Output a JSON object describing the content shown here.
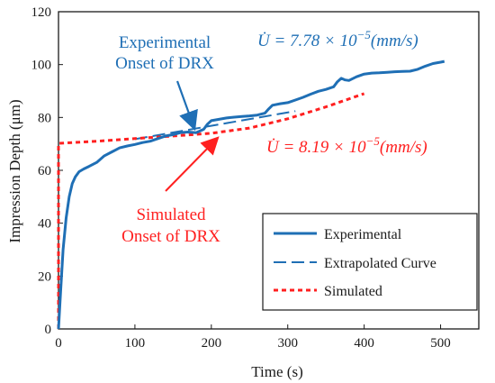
{
  "chart_data": {
    "type": "line",
    "xlabel": "Time (s)",
    "ylabel": "Impression Depth (μm)",
    "xlim": [
      0,
      550
    ],
    "ylim": [
      0,
      120
    ],
    "xticks": [
      0,
      100,
      200,
      300,
      400,
      500
    ],
    "yticks": [
      0,
      20,
      40,
      60,
      80,
      100,
      120
    ],
    "grid": false,
    "legend_position": "bottom-right",
    "series": [
      {
        "name": "Experimental",
        "color": "#1f6fb5",
        "style": "solid",
        "x": [
          0,
          3,
          6,
          10,
          14,
          18,
          22,
          27,
          33,
          40,
          50,
          60,
          70,
          80,
          90,
          100,
          110,
          120,
          130,
          140,
          150,
          160,
          170,
          180,
          190,
          195,
          200,
          210,
          220,
          230,
          240,
          250,
          260,
          270,
          275,
          280,
          290,
          300,
          310,
          320,
          330,
          340,
          350,
          360,
          365,
          370,
          375,
          380,
          390,
          400,
          410,
          420,
          430,
          440,
          450,
          460,
          470,
          480,
          490,
          500,
          505
        ],
        "y": [
          0,
          15,
          30,
          42,
          50,
          55,
          57.5,
          59.5,
          60.5,
          61.5,
          63,
          65.5,
          67,
          68.5,
          69.2,
          69.8,
          70.5,
          71,
          72,
          73,
          73.5,
          74.3,
          74.5,
          74.2,
          75.5,
          77.5,
          78.8,
          79.3,
          79.8,
          80.1,
          80.4,
          80.6,
          80.9,
          81.6,
          83.2,
          84.6,
          85.2,
          85.6,
          86.6,
          87.6,
          88.8,
          89.9,
          90.6,
          91.6,
          93.5,
          94.8,
          94.2,
          94.0,
          95.4,
          96.4,
          96.8,
          96.9,
          97.1,
          97.3,
          97.4,
          97.5,
          98.2,
          99.4,
          100.4,
          100.9,
          101.2
        ]
      },
      {
        "name": "Extrapolated Curve",
        "color": "#1f6fb5",
        "style": "dashed",
        "x": [
          100,
          310
        ],
        "y": [
          71.8,
          82.4
        ]
      },
      {
        "name": "Simulated",
        "color": "#ff2020",
        "style": "dotted",
        "x": [
          0,
          0,
          50,
          100,
          150,
          200,
          250,
          300,
          350,
          400
        ],
        "y": [
          0,
          70.2,
          71.0,
          72.0,
          73.0,
          74.0,
          76.0,
          79.5,
          84.0,
          89.0
        ]
      }
    ],
    "annotations": {
      "exp_onset_line1": "Experimental",
      "exp_onset_line2": "Onset of DRX",
      "sim_onset_line1": "Simulated",
      "sim_onset_line2": "Onset of DRX",
      "exp_rate_prefix": "U̇ = 7.78 × 10",
      "exp_rate_exp": "−5",
      "exp_rate_unit": "(mm/s)",
      "sim_rate_prefix": "U̇ = 8.19 × 10",
      "sim_rate_exp": "−5",
      "sim_rate_unit": "(mm/s)",
      "exp_color": "#1f6fb5",
      "sim_color": "#ff2020"
    }
  }
}
